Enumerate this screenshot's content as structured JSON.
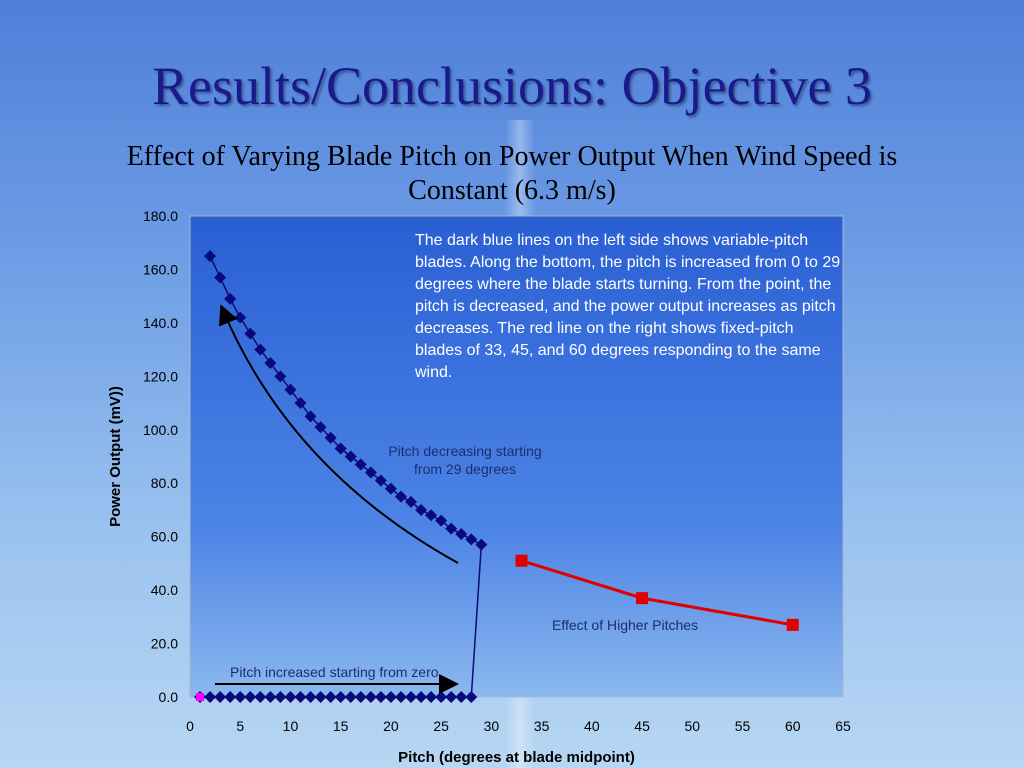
{
  "slide": {
    "title": "Results/Conclusions: Objective 3",
    "subtitle": "Effect of Varying Blade Pitch on Power Output When Wind Speed is Constant (6.3 m/s)"
  },
  "chart_data": {
    "type": "scatter",
    "title": "Effect of Varying Blade Pitch on Power Output When Wind Speed is Constant (6.3 m/s)",
    "xlabel": "Pitch (degrees at blade midpoint)",
    "ylabel": "Power Output (mV))",
    "xlim": [
      0,
      65
    ],
    "ylim": [
      0,
      180
    ],
    "x_ticks": [
      "0",
      "5",
      "10",
      "15",
      "20",
      "25",
      "30",
      "35",
      "40",
      "45",
      "50",
      "55",
      "60",
      "65"
    ],
    "y_ticks": [
      "0.0",
      "20.0",
      "40.0",
      "60.0",
      "80.0",
      "100.0",
      "120.0",
      "140.0",
      "160.0",
      "180.0"
    ],
    "grid": false,
    "plot_background": "#2f66d6",
    "series": [
      {
        "color": "#0a0a7a",
        "marker": "diamond",
        "points": [
          [
            1,
            0
          ],
          [
            2,
            0
          ],
          [
            3,
            0
          ],
          [
            4,
            0
          ],
          [
            5,
            0
          ],
          [
            6,
            0
          ],
          [
            7,
            0
          ],
          [
            8,
            0
          ],
          [
            9,
            0
          ],
          [
            10,
            0
          ],
          [
            11,
            0
          ],
          [
            12,
            0
          ],
          [
            13,
            0
          ],
          [
            14,
            0
          ],
          [
            15,
            0
          ],
          [
            16,
            0
          ],
          [
            17,
            0
          ],
          [
            18,
            0
          ],
          [
            19,
            0
          ],
          [
            20,
            0
          ],
          [
            21,
            0
          ],
          [
            22,
            0
          ],
          [
            23,
            0
          ],
          [
            24,
            0
          ],
          [
            25,
            0
          ],
          [
            26,
            0
          ],
          [
            27,
            0
          ],
          [
            28,
            0
          ],
          [
            29,
            57
          ],
          [
            28,
            59
          ],
          [
            27,
            61
          ],
          [
            26,
            63
          ],
          [
            25,
            66
          ],
          [
            24,
            68
          ],
          [
            23,
            70
          ],
          [
            22,
            73
          ],
          [
            21,
            75
          ],
          [
            20,
            78
          ],
          [
            19,
            81
          ],
          [
            18,
            84
          ],
          [
            17,
            87
          ],
          [
            16,
            90
          ],
          [
            15,
            93
          ],
          [
            14,
            97
          ],
          [
            13,
            101
          ],
          [
            12,
            105
          ],
          [
            11,
            110
          ],
          [
            10,
            115
          ],
          [
            9,
            120
          ],
          [
            8,
            125
          ],
          [
            7,
            130
          ],
          [
            6,
            136
          ],
          [
            5,
            142
          ],
          [
            4,
            149
          ],
          [
            3,
            157
          ],
          [
            2,
            165
          ]
        ]
      },
      {
        "color": "#e00000",
        "marker": "square",
        "points": [
          [
            33,
            51
          ],
          [
            45,
            37
          ],
          [
            60,
            27
          ]
        ]
      },
      {
        "color": "#ff00ff",
        "marker": "square",
        "points": [
          [
            1,
            0
          ]
        ]
      }
    ],
    "annotations": {
      "bottom_arrow": "Pitch increased starting from zero",
      "curve_arrow": "Pitch decreasing starting from 29 degrees",
      "red_label": "Effect of Higher Pitches",
      "note": "The dark blue lines on the left side shows variable-pitch blades. Along the bottom, the pitch is increased from 0 to 29 degrees where the blade starts turning. From the point, the pitch is decreased, and the power output increases as pitch decreases. The red line on the right shows fixed-pitch blades of 33, 45, and 60 degrees responding to the same wind."
    }
  }
}
